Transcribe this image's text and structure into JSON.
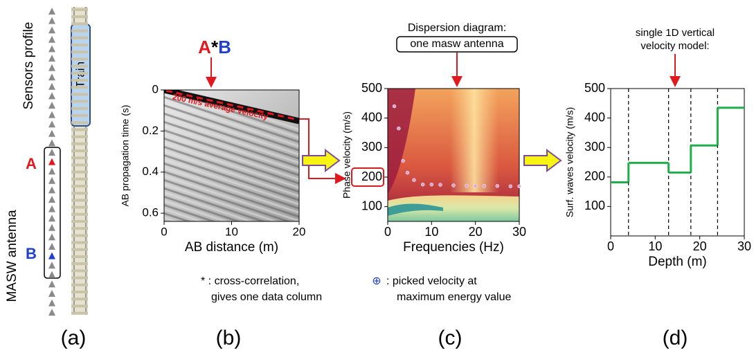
{
  "panel_a": {
    "sensors_label": "Sensors profile",
    "antenna_label": "MASW antenna",
    "train_label": "Train",
    "sensor_a": "A",
    "sensor_b": "B",
    "caption": "(a)"
  },
  "chart_data": [
    {
      "type": "image",
      "title_parts": [
        "A",
        "*",
        "B"
      ],
      "annotation": "200 m/s average velocity",
      "xlabel": "AB distance (m)",
      "ylabel": "AB propagation time (s)",
      "xlim": [
        0,
        20
      ],
      "xticks": [
        0,
        10,
        20
      ],
      "ylim": [
        0,
        0.64
      ],
      "yticks": [
        0,
        0.2,
        0.4,
        0.6
      ],
      "y_inverted": true,
      "note": [
        "* : cross-correlation,",
        "gives one data column"
      ],
      "caption": "(b)"
    },
    {
      "type": "scatter",
      "title": "Dispersion diagram:",
      "subtitle": "one masw antenna",
      "xlabel": "Frequencies (Hz)",
      "ylabel": "Phase velocity (m/s)",
      "xlim": [
        0,
        30
      ],
      "xticks": [
        0,
        10,
        20,
        30
      ],
      "ylim": [
        50,
        500
      ],
      "yticks": [
        100,
        200,
        300,
        400,
        500
      ],
      "highlight_tick": 200,
      "x": [
        1.5,
        2.5,
        3.5,
        4.5,
        6,
        8,
        10,
        12,
        15,
        18,
        20,
        22,
        25,
        28,
        30
      ],
      "values": [
        440,
        365,
        255,
        215,
        190,
        175,
        175,
        174,
        172,
        171,
        170,
        170,
        170,
        169,
        169
      ],
      "color": "#d9a6d4",
      "marker_symbol": "⊕",
      "note": [
        ": picked velocity at",
        "maximum energy value"
      ],
      "caption": "(c)"
    },
    {
      "type": "step",
      "title": [
        "single 1D vertical",
        "velocity model:"
      ],
      "xlabel": "Depth (m)",
      "ylabel": "Surf. waves velocity (m/s)",
      "xlim": [
        0,
        30
      ],
      "xticks": [
        0,
        10,
        20,
        30
      ],
      "ylim": [
        0,
        500
      ],
      "yticks": [
        100,
        200,
        300,
        400,
        500
      ],
      "x": [
        0,
        4,
        13,
        18,
        24
      ],
      "values": [
        182,
        248,
        215,
        307,
        435
      ],
      "color": "#1fae4b",
      "caption": "(d)"
    }
  ]
}
